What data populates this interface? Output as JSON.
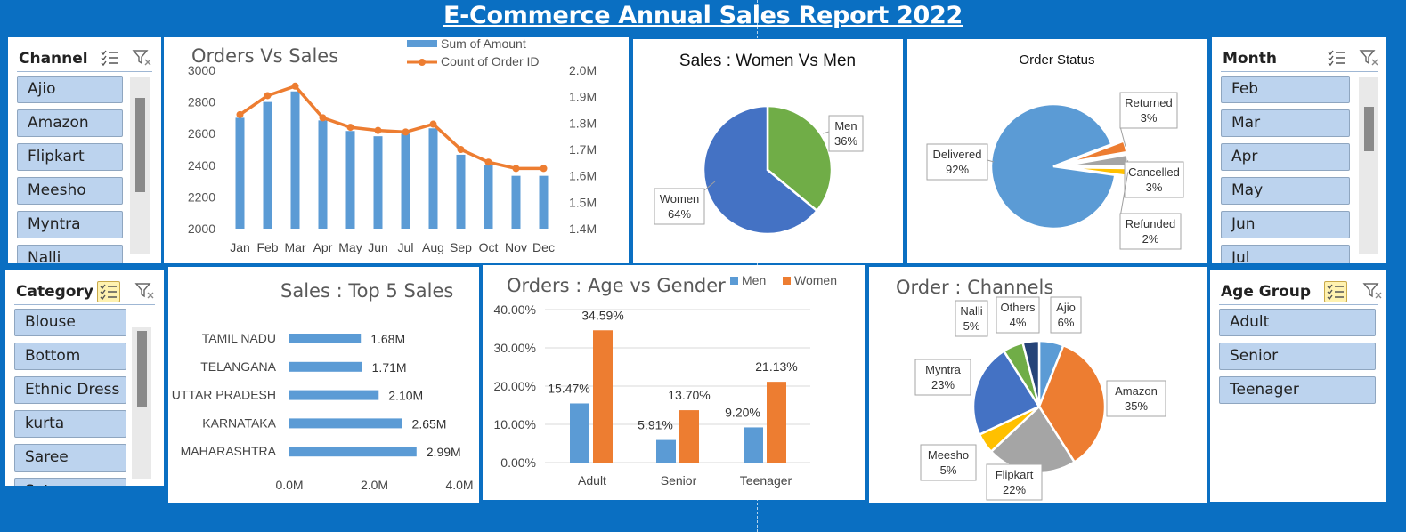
{
  "report_title": "E-Commerce Annual Sales Report 2022",
  "slicers": {
    "channel": {
      "title": "Channel",
      "items": [
        "Ajio",
        "Amazon",
        "Flipkart",
        "Meesho",
        "Myntra",
        "Nalli"
      ],
      "multi_select_active": false,
      "icons": [
        "multi-select-icon",
        "clear-filter-icon"
      ]
    },
    "month": {
      "title": "Month",
      "items": [
        "Feb",
        "Mar",
        "Apr",
        "May",
        "Jun",
        "Jul"
      ],
      "multi_select_active": false,
      "icons": [
        "multi-select-icon",
        "clear-filter-icon"
      ]
    },
    "category": {
      "title": "Category",
      "items": [
        "Blouse",
        "Bottom",
        "Ethnic Dress",
        "kurta",
        "Saree",
        "Set"
      ],
      "multi_select_active": true,
      "icons": [
        "multi-select-icon",
        "clear-filter-icon"
      ]
    },
    "age_group": {
      "title": "Age Group",
      "items": [
        "Adult",
        "Senior",
        "Teenager"
      ],
      "multi_select_active": true,
      "icons": [
        "multi-select-icon",
        "clear-filter-icon"
      ]
    }
  },
  "colors": {
    "background": "#0a6fc2",
    "blue": "#5b9bd5",
    "orange": "#ed7d31",
    "green": "#70ad47",
    "dark_blue": "#4472c4",
    "gray": "#a5a5a5",
    "gold": "#ffc000",
    "navy": "#264478",
    "slicer_item": "#bcd3ee"
  },
  "chart_data": [
    {
      "id": "orders_vs_sales",
      "type": "bar+line",
      "title": "Orders Vs Sales",
      "categories": [
        "Jan",
        "Feb",
        "Mar",
        "Apr",
        "May",
        "Jun",
        "Jul",
        "Aug",
        "Sep",
        "Oct",
        "Nov",
        "Dec"
      ],
      "series": [
        {
          "name": "Sum of Amount",
          "type": "bar",
          "axis": "right",
          "values": [
            1.82,
            1.88,
            1.92,
            1.81,
            1.77,
            1.75,
            1.76,
            1.78,
            1.68,
            1.64,
            1.6,
            1.6
          ]
        },
        {
          "name": "Count of Order ID",
          "type": "line",
          "axis": "left",
          "values": [
            2720,
            2840,
            2900,
            2700,
            2640,
            2620,
            2610,
            2660,
            2500,
            2420,
            2380,
            2380
          ]
        }
      ],
      "y_left": {
        "ylim": [
          2000,
          3000
        ],
        "ticks": [
          "2000",
          "2200",
          "2400",
          "2600",
          "2800",
          "3000"
        ]
      },
      "y_right": {
        "ylim": [
          1.4,
          2.0
        ],
        "ticks": [
          "1.4M",
          "1.5M",
          "1.6M",
          "1.7M",
          "1.8M",
          "1.9M",
          "2.0M"
        ]
      },
      "legend": "top-right"
    },
    {
      "id": "sales_gender",
      "type": "pie",
      "title": "Sales : Women Vs Men",
      "slices": [
        {
          "label": "Men",
          "value": 36,
          "pct": "36%"
        },
        {
          "label": "Women",
          "value": 64,
          "pct": "64%"
        }
      ]
    },
    {
      "id": "order_status",
      "type": "pie",
      "title": "Order Status",
      "slices": [
        {
          "label": "Delivered",
          "value": 92,
          "pct": "92%"
        },
        {
          "label": "Returned",
          "value": 3,
          "pct": "3%"
        },
        {
          "label": "Cancelled",
          "value": 3,
          "pct": "3%"
        },
        {
          "label": "Refunded",
          "value": 2,
          "pct": "2%"
        }
      ]
    },
    {
      "id": "top5_states",
      "type": "bar",
      "orientation": "horizontal",
      "title": "Sales : Top 5 Sales",
      "categories": [
        "TAMIL NADU",
        "TELANGANA",
        "UTTAR PRADESH",
        "KARNATAKA",
        "MAHARASHTRA"
      ],
      "values": [
        1.68,
        1.71,
        2.1,
        2.65,
        2.99
      ],
      "data_labels": [
        "1.68M",
        "1.71M",
        "2.10M",
        "2.65M",
        "2.99M"
      ],
      "xlim": [
        0,
        4
      ],
      "x_ticks": [
        "0.0M",
        "2.0M",
        "4.0M"
      ]
    },
    {
      "id": "age_gender",
      "type": "bar",
      "title": "Orders : Age vs Gender",
      "categories": [
        "Adult",
        "Senior",
        "Teenager"
      ],
      "series": [
        {
          "name": "Men",
          "values": [
            15.47,
            5.91,
            9.2
          ],
          "labels": [
            "15.47%",
            "5.91%",
            "9.20%"
          ]
        },
        {
          "name": "Women",
          "values": [
            34.59,
            13.7,
            21.13
          ],
          "labels": [
            "34.59%",
            "13.70%",
            "21.13%"
          ]
        }
      ],
      "ylim": [
        0,
        40
      ],
      "y_ticks": [
        "0.00%",
        "10.00%",
        "20.00%",
        "30.00%",
        "40.00%"
      ],
      "legend": "top-right",
      "grid": true
    },
    {
      "id": "order_channels",
      "type": "pie",
      "title": "Order : Channels",
      "slices": [
        {
          "label": "Ajio",
          "value": 6,
          "pct": "6%"
        },
        {
          "label": "Amazon",
          "value": 35,
          "pct": "35%"
        },
        {
          "label": "Flipkart",
          "value": 22,
          "pct": "22%"
        },
        {
          "label": "Meesho",
          "value": 5,
          "pct": "5%"
        },
        {
          "label": "Myntra",
          "value": 23,
          "pct": "23%"
        },
        {
          "label": "Nalli",
          "value": 5,
          "pct": "5%"
        },
        {
          "label": "Others",
          "value": 4,
          "pct": "4%"
        }
      ]
    }
  ]
}
